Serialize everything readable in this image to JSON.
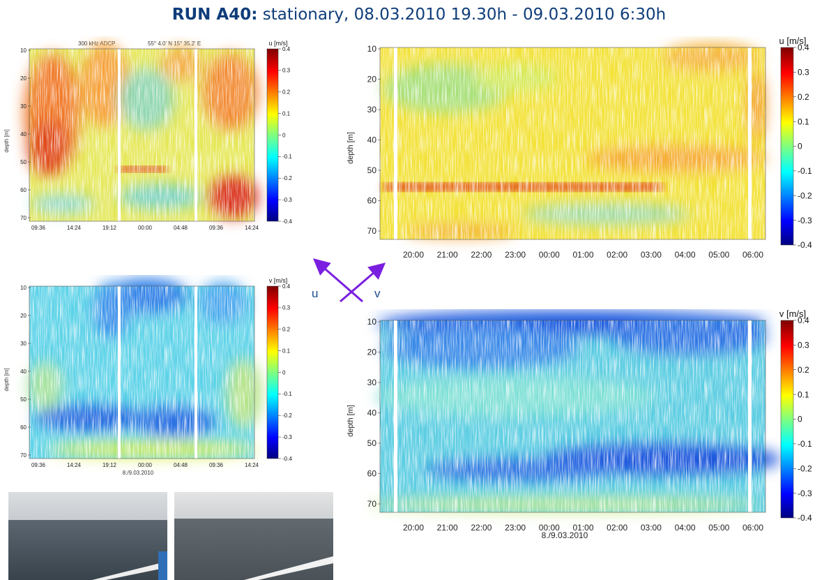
{
  "title": {
    "bold": "RUN A40:",
    "rest": " stationary, 08.03.2010 19.30h - 09.03.2010 6:30h"
  },
  "colors": {
    "title": "#0f3d7a",
    "arrow": "#7a1fe0"
  },
  "small_u": {
    "header_left": "300 kHz ADCP",
    "header_right": "55° 4.0' N 15° 35.2' E",
    "ylabel": "depth [m]",
    "yticks": [
      "10",
      "20",
      "30",
      "40",
      "50",
      "60",
      "70"
    ],
    "xticks": [
      "09:36",
      "14:24",
      "19:12",
      "00:00",
      "04:48",
      "09:36",
      "14:24"
    ],
    "xlabel": "",
    "cb_title": "u [m/s]",
    "cb_ticks": [
      "0.4",
      "0.3",
      "0.2",
      "0.1",
      "0",
      "-0.1",
      "-0.2",
      "-0.3",
      "-0.4"
    ]
  },
  "small_v": {
    "ylabel": "depth [m]",
    "yticks": [
      "10",
      "20",
      "30",
      "40",
      "50",
      "60",
      "70"
    ],
    "xticks": [
      "09:36",
      "14:24",
      "19:12",
      "00:00",
      "04:48",
      "09:36",
      "14:24"
    ],
    "xlabel": "8./9.03.2010",
    "cb_title": "v [m/s]",
    "cb_ticks": [
      "0.4",
      "0.3",
      "0.2",
      "0.1",
      "0",
      "-0.1",
      "-0.2",
      "-0.3",
      "-0.4"
    ]
  },
  "big_u": {
    "ylabel": "depth [m]",
    "yticks": [
      "10",
      "20",
      "30",
      "40",
      "50",
      "60",
      "70"
    ],
    "xticks": [
      "20:00",
      "21:00",
      "22:00",
      "23:00",
      "00:00",
      "01:00",
      "02:00",
      "03:00",
      "04:00",
      "05:00",
      "06:00"
    ],
    "xlabel": "",
    "cb_title": "u [m/s]",
    "cb_ticks": [
      "0.4",
      "0.3",
      "0.2",
      "0.1",
      "0",
      "-0.1",
      "-0.2",
      "-0.3",
      "-0.4"
    ]
  },
  "big_v": {
    "ylabel": "depth [m]",
    "yticks": [
      "10",
      "20",
      "30",
      "40",
      "50",
      "60",
      "70"
    ],
    "xticks": [
      "20:00",
      "21:00",
      "22:00",
      "23:00",
      "00:00",
      "01:00",
      "02:00",
      "03:00",
      "04:00",
      "05:00",
      "06:00"
    ],
    "xlabel": "8./9.03.2010",
    "cb_title": "v [m/s]",
    "cb_ticks": [
      "0.4",
      "0.3",
      "0.2",
      "0.1",
      "0",
      "-0.1",
      "-0.2",
      "-0.3",
      "-0.4"
    ]
  },
  "compass": {
    "u_label": "u",
    "v_label": "v"
  },
  "chart_data": [
    {
      "type": "heatmap",
      "variable": "u [m/s]",
      "header": [
        "300 kHz ADCP",
        "55° 4.0' N 15° 35.2' E"
      ],
      "ylabel": "depth [m]",
      "ylim": [
        10,
        74
      ],
      "x_ticks": [
        "09:36",
        "14:24",
        "19:12",
        "00:00",
        "04:48",
        "09:36",
        "14:24"
      ],
      "clim": [
        -0.4,
        0.4
      ],
      "features": [
        {
          "depth": [
            10,
            50
          ],
          "time": "09:36-14:24",
          "value": 0.25
        },
        {
          "depth": [
            57,
            57
          ],
          "time": "19:12-00:00",
          "value": 0.3
        },
        {
          "depth": [
            60,
            74
          ],
          "time": "09:36-14:24",
          "value": 0.3
        }
      ]
    },
    {
      "type": "heatmap",
      "variable": "v [m/s]",
      "ylabel": "depth [m]",
      "xlabel": "8./9.03.2010",
      "ylim": [
        10,
        74
      ],
      "x_ticks": [
        "09:36",
        "14:24",
        "19:12",
        "00:00",
        "04:48",
        "09:36",
        "14:24"
      ],
      "clim": [
        -0.4,
        0.4
      ],
      "features": [
        {
          "depth": [
            10,
            20
          ],
          "time": "19:12-04:48",
          "value": -0.25
        },
        {
          "depth": [
            55,
            62
          ],
          "time": "09:36-09:36",
          "value": -0.25
        },
        {
          "depth": [
            68,
            74
          ],
          "time": "09:36-14:24",
          "value": 0.1
        }
      ]
    },
    {
      "type": "heatmap",
      "variable": "u [m/s]",
      "ylabel": "depth [m]",
      "ylim": [
        10,
        74
      ],
      "x_ticks": [
        "20:00",
        "21:00",
        "22:00",
        "23:00",
        "00:00",
        "01:00",
        "02:00",
        "03:00",
        "04:00",
        "05:00",
        "06:00"
      ],
      "clim": [
        -0.4,
        0.4
      ],
      "features": [
        {
          "depth": [
            10,
            48
          ],
          "time": "19:30-06:30",
          "value": 0.1
        },
        {
          "depth": [
            18,
            32
          ],
          "time": "20:30-01:00",
          "value": 0.0
        },
        {
          "depth": [
            55,
            59
          ],
          "time": "20:00-01:00",
          "value": 0.3
        },
        {
          "depth": [
            62,
            68
          ],
          "time": "01:00-05:00",
          "value": -0.05
        }
      ]
    },
    {
      "type": "heatmap",
      "variable": "v [m/s]",
      "ylabel": "depth [m]",
      "xlabel": "8./9.03.2010",
      "ylim": [
        10,
        74
      ],
      "x_ticks": [
        "20:00",
        "21:00",
        "22:00",
        "23:00",
        "00:00",
        "01:00",
        "02:00",
        "03:00",
        "04:00",
        "05:00",
        "06:00"
      ],
      "clim": [
        -0.4,
        0.4
      ],
      "features": [
        {
          "depth": [
            10,
            25
          ],
          "time": "19:30-06:30",
          "value": -0.2
        },
        {
          "depth": [
            30,
            48
          ],
          "time": "19:30-06:30",
          "value": -0.05
        },
        {
          "depth": [
            55,
            66
          ],
          "time": "21:00-06:30",
          "value": -0.25
        },
        {
          "depth": [
            68,
            74
          ],
          "time": "19:30-06:30",
          "value": 0.05
        }
      ]
    }
  ]
}
